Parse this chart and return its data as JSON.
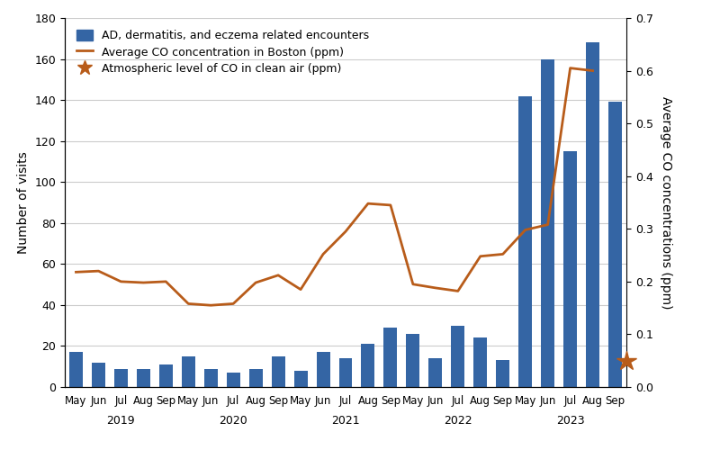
{
  "bar_labels": [
    "May",
    "Jun",
    "Jul",
    "Aug",
    "Sep",
    "May",
    "Jun",
    "Jul",
    "Aug",
    "Sep",
    "May",
    "Jun",
    "Jul",
    "Aug",
    "Sep",
    "May",
    "Jun",
    "Jul",
    "Aug",
    "Sep",
    "May",
    "Jun",
    "Jul",
    "Aug",
    "Sep"
  ],
  "year_labels": [
    "2019",
    "2020",
    "2021",
    "2022",
    "2023"
  ],
  "year_centers": [
    2,
    7,
    12,
    17,
    22
  ],
  "bar_values": [
    17,
    12,
    9,
    9,
    11,
    15,
    9,
    7,
    9,
    15,
    8,
    17,
    14,
    21,
    29,
    26,
    14,
    30,
    24,
    13,
    142,
    160,
    115,
    168,
    139
  ],
  "co_values": [
    0.218,
    0.22,
    0.2,
    0.198,
    0.2,
    0.158,
    0.155,
    0.158,
    0.198,
    0.212,
    0.185,
    0.252,
    0.295,
    0.348,
    0.345,
    0.195,
    0.188,
    0.182,
    0.248,
    0.252,
    0.298,
    0.308,
    0.605,
    0.6,
    null
  ],
  "clean_air_co": 0.05,
  "bar_color": "#3465a4",
  "line_color": "#b85c1a",
  "star_color": "#b85c1a",
  "ylabel_left": "Number of visits",
  "ylabel_right": "Average CO concentrations (ppm)",
  "ylim_left": [
    0,
    180
  ],
  "ylim_right": [
    0,
    0.7
  ],
  "yticks_left": [
    0,
    20,
    40,
    60,
    80,
    100,
    120,
    140,
    160,
    180
  ],
  "yticks_right": [
    0,
    0.1,
    0.2,
    0.3,
    0.4,
    0.5,
    0.6,
    0.7
  ],
  "legend_bar": "AD, dermatitis, and eczema related encounters",
  "legend_line": "Average CO concentration in Boston (ppm)",
  "legend_star": "Atmospheric level of CO in clean air (ppm)",
  "background_color": "#ffffff",
  "grid_color": "#cccccc",
  "figsize": [
    8.0,
    5.0
  ],
  "dpi": 100
}
